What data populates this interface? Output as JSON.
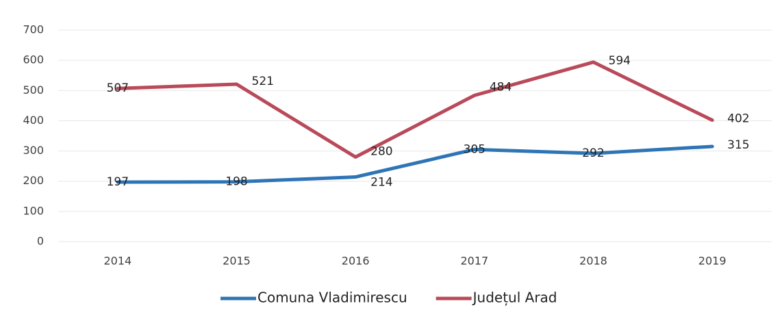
{
  "chart_data": {
    "type": "line",
    "categories": [
      "2014",
      "2015",
      "2016",
      "2017",
      "2018",
      "2019"
    ],
    "series": [
      {
        "name": "Comuna Vladimirescu",
        "color": "#2e75b6",
        "values": [
          197,
          198,
          214,
          305,
          292,
          315
        ]
      },
      {
        "name": "Județul Arad",
        "color": "#b94a5a",
        "values": [
          507,
          521,
          280,
          484,
          594,
          402
        ]
      }
    ],
    "ylim": [
      0,
      700
    ],
    "yticks": [
      0,
      100,
      200,
      300,
      400,
      500,
      600,
      700
    ],
    "grid": true,
    "legend": "bottom"
  }
}
